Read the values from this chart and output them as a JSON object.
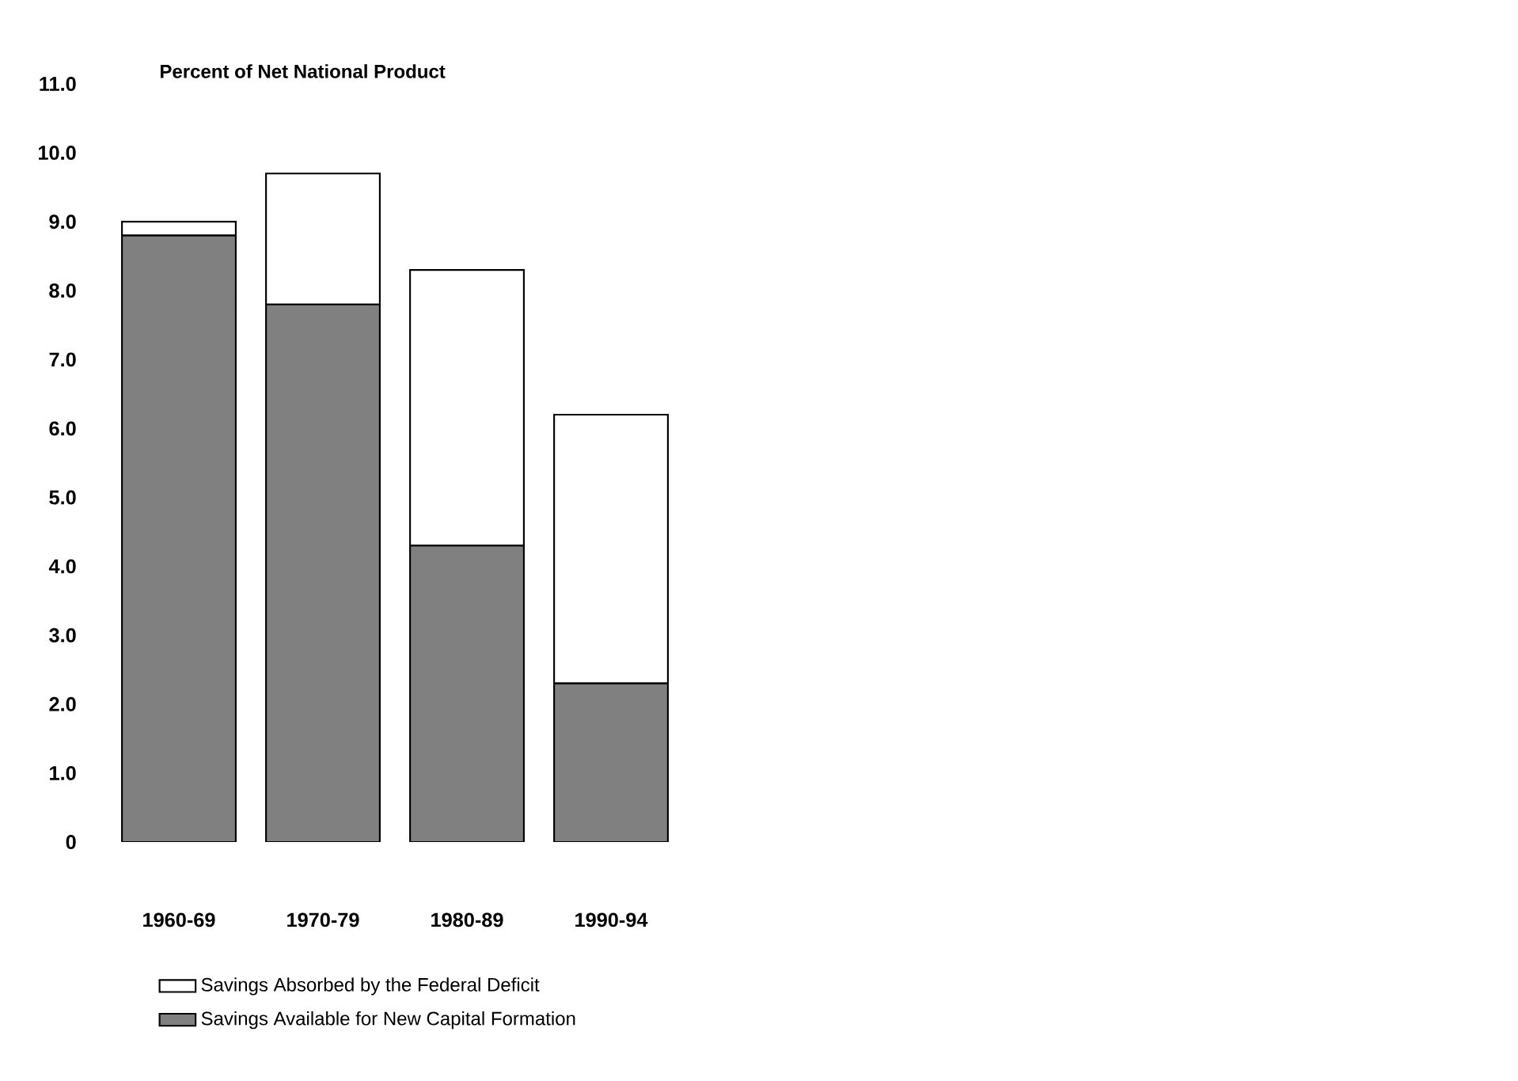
{
  "chart_data": {
    "type": "bar",
    "stacked": true,
    "title": "Percent of Net National Product",
    "categories": [
      "1960-69",
      "1970-79",
      "1980-89",
      "1990-94"
    ],
    "series": [
      {
        "name": "Savings Available for New Capital Formation",
        "color": "#808080",
        "values": [
          8.8,
          7.8,
          4.3,
          2.3
        ]
      },
      {
        "name": "Savings Absorbed by the Federal Deficit",
        "color": "#ffffff",
        "values": [
          0.2,
          1.9,
          4.0,
          3.9
        ]
      }
    ],
    "ylim": [
      0,
      11
    ],
    "yticks": [
      0,
      {
        "value": 1,
        "label": "1.0"
      },
      {
        "value": 2,
        "label": "2.0"
      },
      {
        "value": 3,
        "label": "3.0"
      },
      {
        "value": 4,
        "label": "4.0"
      },
      {
        "value": 5,
        "label": "5.0"
      },
      {
        "value": 6,
        "label": "6.0"
      },
      {
        "value": 7,
        "label": "7.0"
      },
      {
        "value": 8,
        "label": "8.0"
      },
      {
        "value": 9,
        "label": "9.0"
      },
      {
        "value": 10,
        "label": "10.0"
      },
      {
        "value": 11,
        "label": "11.0"
      }
    ],
    "grid": false,
    "legend": "bottom"
  }
}
